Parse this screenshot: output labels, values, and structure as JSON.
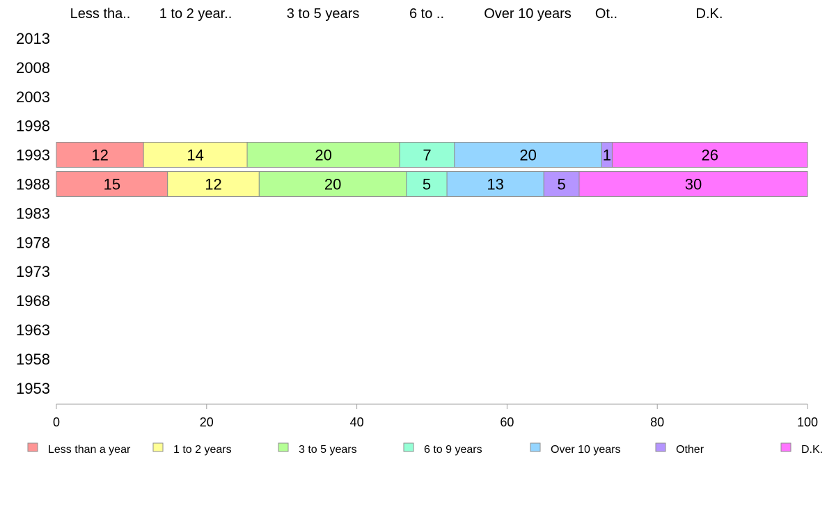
{
  "chart_data": {
    "type": "bar",
    "orientation": "horizontal",
    "stacked": true,
    "series_order": [
      "Less than a year",
      "1 to 2 years",
      "3 to 5 years",
      "6 to 9 years",
      "Over 10 years",
      "Other",
      "D.K."
    ],
    "header_labels": [
      "Less tha..",
      "1 to 2 year..",
      "3 to 5 years",
      "6 to ..",
      "Over 10 years",
      "Ot..",
      "D.K."
    ],
    "categories": [
      "2013",
      "2008",
      "2003",
      "1998",
      "1993",
      "1988",
      "1983",
      "1978",
      "1973",
      "1968",
      "1963",
      "1958",
      "1953"
    ],
    "series": [
      {
        "name": "Less than a year",
        "color": "#ff9595",
        "values": {
          "1993": 11.6,
          "1988": 14.8
        },
        "labels": {
          "1993": "12",
          "1988": "15"
        }
      },
      {
        "name": "1 to 2 years",
        "color": "#ffff95",
        "values": {
          "1993": 13.8,
          "1988": 12.2
        },
        "labels": {
          "1993": "14",
          "1988": "12"
        }
      },
      {
        "name": "3 to 5 years",
        "color": "#b5ff95",
        "values": {
          "1993": 20.3,
          "1988": 19.6
        },
        "labels": {
          "1993": "20",
          "1988": "20"
        }
      },
      {
        "name": "6 to 9 years",
        "color": "#95ffd5",
        "values": {
          "1993": 7.3,
          "1988": 5.4
        },
        "labels": {
          "1993": "7",
          "1988": "5"
        }
      },
      {
        "name": "Over 10 years",
        "color": "#95d5ff",
        "values": {
          "1993": 19.6,
          "1988": 12.9
        },
        "labels": {
          "1993": "20",
          "1988": "13"
        }
      },
      {
        "name": "Other",
        "color": "#b595ff",
        "values": {
          "1993": 1.4,
          "1988": 4.7
        },
        "labels": {
          "1993": "1",
          "1988": "5"
        }
      },
      {
        "name": "D.K.",
        "color": "#ff75ff",
        "values": {
          "1993": 26.0,
          "1988": 30.4
        },
        "labels": {
          "1993": "26",
          "1988": "30"
        }
      }
    ],
    "xlim": [
      0,
      100
    ],
    "xticks": [
      0,
      20,
      40,
      60,
      80,
      100
    ],
    "xlabel": "",
    "ylabel": "",
    "title": "",
    "grid": false,
    "legend_position": "bottom"
  }
}
